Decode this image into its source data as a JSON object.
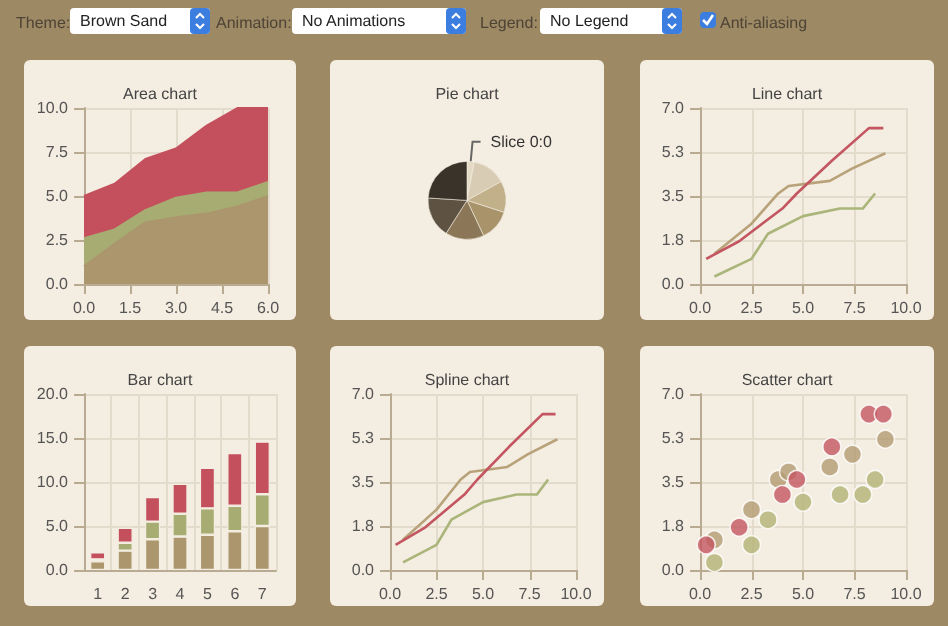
{
  "chart_data": [
    {
      "type": "other",
      "annotations": [
        "Theme:",
        "Brown Sand",
        "Animation:",
        "No Animations",
        "Legend:",
        "No Legend",
        "Anti-aliasing"
      ]
    },
    {
      "type": "area",
      "title": "Area chart",
      "stacked": true,
      "x": [
        0,
        1,
        2,
        3,
        4,
        5,
        6
      ],
      "xlim": [
        0,
        6
      ],
      "xticks": [
        {
          "value": 0,
          "label": "0.0"
        },
        {
          "value": 1.5,
          "label": "1.5"
        },
        {
          "value": 3,
          "label": "3.0"
        },
        {
          "value": 4.5,
          "label": "4.5"
        },
        {
          "value": 6,
          "label": "6.0"
        }
      ],
      "ylim": [
        0,
        10
      ],
      "yticks": [
        {
          "value": 0,
          "label": "0.0"
        },
        {
          "value": 2.5,
          "label": "2.5"
        },
        {
          "value": 5,
          "label": "5.0"
        },
        {
          "value": 7.5,
          "label": "7.5"
        },
        {
          "value": 10,
          "label": "10.0"
        }
      ],
      "grid": true,
      "legend": false,
      "series": [
        {
          "color": "#ab966d",
          "values": [
            1.0,
            2.3,
            3.5,
            3.8,
            4.0,
            4.4,
            5.0
          ]
        },
        {
          "color": "#a7ad72",
          "values": [
            1.6,
            0.8,
            0.7,
            1.1,
            1.2,
            0.8,
            0.8
          ]
        },
        {
          "color": "#c4505e",
          "values": [
            2.4,
            2.6,
            2.9,
            2.8,
            3.8,
            4.8,
            4.2
          ]
        }
      ]
    },
    {
      "type": "pie",
      "title": "Pie chart",
      "categories": [
        "Slice 0:0",
        null,
        null,
        null,
        null,
        null,
        null
      ],
      "values": [
        3,
        14,
        13,
        13,
        16,
        17,
        24
      ],
      "colors": [
        "#e4dac6",
        "#d8cdb4",
        "#c1b08a",
        "#a8936b",
        "#8b7757",
        "#5e5243",
        "#3a3329"
      ],
      "legend": false
    },
    {
      "type": "line",
      "title": "Line chart",
      "xlim": [
        0,
        10
      ],
      "xticks": [
        {
          "value": 0,
          "label": "0.0"
        },
        {
          "value": 2.5,
          "label": "2.5"
        },
        {
          "value": 5,
          "label": "5.0"
        },
        {
          "value": 7.5,
          "label": "7.5"
        },
        {
          "value": 10,
          "label": "10.0"
        }
      ],
      "ylim": [
        0,
        7
      ],
      "yticks": [
        {
          "value": 0,
          "label": "0.0"
        },
        {
          "value": 1.75,
          "label": "1.8"
        },
        {
          "value": 3.5,
          "label": "3.5"
        },
        {
          "value": 5.25,
          "label": "5.3"
        },
        {
          "value": 7,
          "label": "7.0"
        }
      ],
      "grid": true,
      "legend": false,
      "marker": "none",
      "series": [
        {
          "color": "#b8a27a",
          "x": [
            0.7,
            2.5,
            3.8,
            4.3,
            6.3,
            7.4,
            9.0
          ],
          "values": [
            1.2,
            2.4,
            3.6,
            3.9,
            4.1,
            4.6,
            5.2
          ]
        },
        {
          "color": "#aab57a",
          "x": [
            0.7,
            2.5,
            3.3,
            5.0,
            6.8,
            7.9,
            8.5
          ],
          "values": [
            0.3,
            1.0,
            2.0,
            2.7,
            3.0,
            3.0,
            3.6
          ]
        },
        {
          "color": "#c35660",
          "x": [
            0.3,
            1.9,
            4.0,
            4.7,
            6.4,
            8.2,
            8.9
          ],
          "values": [
            1.0,
            1.7,
            3.0,
            3.6,
            4.9,
            6.2,
            6.2
          ]
        }
      ]
    },
    {
      "type": "bar",
      "title": "Bar chart",
      "stacked": true,
      "categories": [
        "1",
        "2",
        "3",
        "4",
        "5",
        "6",
        "7"
      ],
      "ylim": [
        0,
        20
      ],
      "yticks": [
        {
          "value": 0,
          "label": "0.0"
        },
        {
          "value": 5,
          "label": "5.0"
        },
        {
          "value": 10,
          "label": "10.0"
        },
        {
          "value": 15,
          "label": "15.0"
        },
        {
          "value": 20,
          "label": "20.0"
        }
      ],
      "grid": true,
      "legend": false,
      "series": [
        {
          "color": "#ab966d",
          "values": [
            1.0,
            2.2,
            3.5,
            3.8,
            4.0,
            4.4,
            5.0
          ]
        },
        {
          "color": "#a7ad72",
          "values": [
            0.2,
            0.9,
            2.0,
            2.6,
            3.0,
            2.9,
            3.6
          ]
        },
        {
          "color": "#c4505e",
          "values": [
            0.8,
            1.7,
            2.8,
            3.4,
            4.6,
            6.0,
            6.0
          ]
        }
      ]
    },
    {
      "type": "line",
      "title": "Spline chart",
      "xlim": [
        0,
        10
      ],
      "xticks": [
        {
          "value": 0,
          "label": "0.0"
        },
        {
          "value": 2.5,
          "label": "2.5"
        },
        {
          "value": 5,
          "label": "5.0"
        },
        {
          "value": 7.5,
          "label": "7.5"
        },
        {
          "value": 10,
          "label": "10.0"
        }
      ],
      "ylim": [
        0,
        7
      ],
      "yticks": [
        {
          "value": 0,
          "label": "0.0"
        },
        {
          "value": 1.75,
          "label": "1.8"
        },
        {
          "value": 3.5,
          "label": "3.5"
        },
        {
          "value": 5.25,
          "label": "5.3"
        },
        {
          "value": 7,
          "label": "7.0"
        }
      ],
      "grid": true,
      "legend": false,
      "marker": "none",
      "series": [
        {
          "color": "#b8a27a",
          "x": [
            0.7,
            2.5,
            3.8,
            4.3,
            6.3,
            7.4,
            9.0
          ],
          "values": [
            1.2,
            2.4,
            3.6,
            3.9,
            4.1,
            4.6,
            5.2
          ]
        },
        {
          "color": "#aab57a",
          "x": [
            0.7,
            2.5,
            3.3,
            5.0,
            6.8,
            7.9,
            8.5
          ],
          "values": [
            0.3,
            1.0,
            2.0,
            2.7,
            3.0,
            3.0,
            3.6
          ]
        },
        {
          "color": "#c35660",
          "x": [
            0.3,
            1.9,
            4.0,
            4.7,
            6.4,
            8.2,
            8.9
          ],
          "values": [
            1.0,
            1.7,
            3.0,
            3.6,
            4.9,
            6.2,
            6.2
          ]
        }
      ]
    },
    {
      "type": "scatter",
      "title": "Scatter chart",
      "xlim": [
        0,
        10
      ],
      "xticks": [
        {
          "value": 0,
          "label": "0.0"
        },
        {
          "value": 2.5,
          "label": "2.5"
        },
        {
          "value": 5,
          "label": "5.0"
        },
        {
          "value": 7.5,
          "label": "7.5"
        },
        {
          "value": 10,
          "label": "10.0"
        }
      ],
      "ylim": [
        0,
        7
      ],
      "yticks": [
        {
          "value": 0,
          "label": "0.0"
        },
        {
          "value": 1.75,
          "label": "1.8"
        },
        {
          "value": 3.5,
          "label": "3.5"
        },
        {
          "value": 5.25,
          "label": "5.3"
        },
        {
          "value": 7,
          "label": "7.0"
        }
      ],
      "grid": true,
      "legend": false,
      "marker": "circle",
      "series": [
        {
          "color": "#b39b72",
          "x": [
            0.7,
            2.5,
            3.8,
            4.3,
            6.3,
            7.4,
            9.0
          ],
          "values": [
            1.2,
            2.4,
            3.6,
            3.9,
            4.1,
            4.6,
            5.2
          ]
        },
        {
          "color": "#b3b376",
          "x": [
            0.7,
            2.5,
            3.3,
            5.0,
            6.8,
            7.9,
            8.5
          ],
          "values": [
            0.3,
            1.0,
            2.0,
            2.7,
            3.0,
            3.0,
            3.6
          ]
        },
        {
          "color": "#c35660",
          "x": [
            0.3,
            1.9,
            4.0,
            4.7,
            6.4,
            8.2,
            8.9
          ],
          "values": [
            1.0,
            1.7,
            3.0,
            3.6,
            4.9,
            6.2,
            6.2
          ]
        }
      ]
    }
  ]
}
